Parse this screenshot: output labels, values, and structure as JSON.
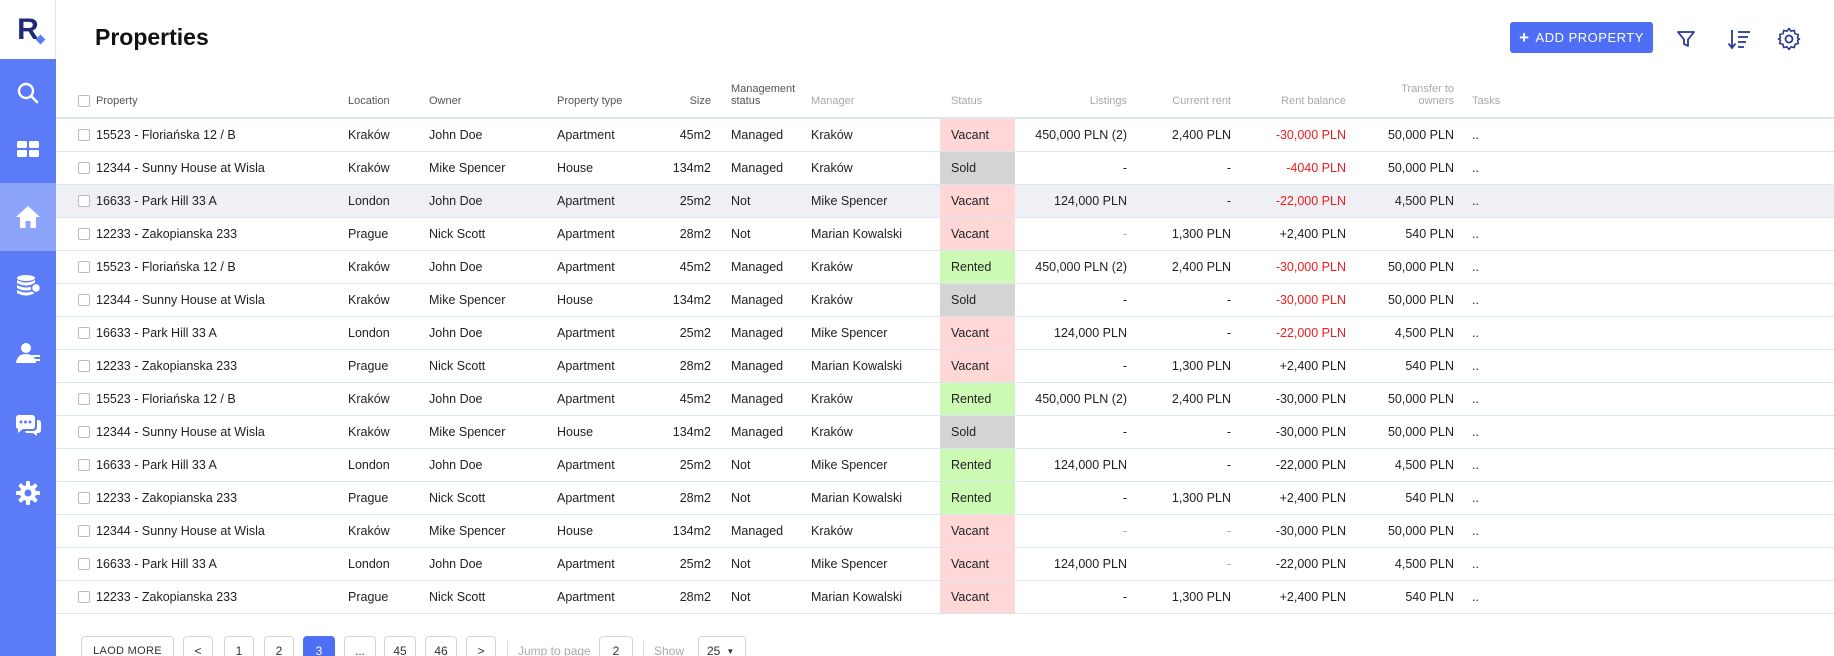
{
  "header": {
    "title": "Properties",
    "add_button": "ADD PROPERTY"
  },
  "icons": {
    "toolbar": [
      "filter-icon",
      "sort-icon",
      "settings-icon"
    ],
    "sidebar": [
      "search-icon",
      "dashboard-icon",
      "home-icon",
      "finance-icon",
      "users-icon",
      "chat-icon",
      "settings-icon"
    ]
  },
  "colors": {
    "accent": "#4d6ef5",
    "sidebar": "#5b7cf6",
    "sidebar_active": "#8da4fb",
    "negative": "#ee1c1c",
    "vacant_bg": "#ffd7d7",
    "rented_bg": "#ccfab4",
    "sold_bg": "#d4d4d4"
  },
  "table": {
    "columns": {
      "property": "Property",
      "location": "Location",
      "owner": "Owner",
      "type": "Property type",
      "size": "Size",
      "mgmt_1": "Management",
      "mgmt_2": "status",
      "manager": "Manager",
      "status": "Status",
      "listings": "Listings",
      "rent": "Current rent",
      "balance": "Rent balance",
      "transfer_1": "Transfer to",
      "transfer_2": "owners",
      "tasks": "Tasks"
    },
    "rows": [
      {
        "property": "15523 - Floriańska 12 / B",
        "location": "Kraków",
        "owner": "John Doe",
        "type": "Apartment",
        "size": "45m2",
        "mgmt": "Managed",
        "manager": "Kraków",
        "status": "Vacant",
        "listings": "450,000 PLN (2)",
        "rent": "2,400 PLN",
        "balance": "-30,000 PLN",
        "balance_negative": true,
        "transfer": "50,000 PLN",
        "tasks": "..",
        "highlight": false
      },
      {
        "property": "12344 - Sunny House at Wisla",
        "location": "Kraków",
        "owner": "Mike Spencer",
        "type": "House",
        "size": "134m2",
        "mgmt": "Managed",
        "manager": "Kraków",
        "status": "Sold",
        "listings": "-",
        "rent": "-",
        "balance": "-4040 PLN",
        "balance_negative": true,
        "transfer": "50,000 PLN",
        "tasks": "..",
        "highlight": false
      },
      {
        "property": "16633 - Park Hill 33 A",
        "location": "London",
        "owner": "John Doe",
        "type": "Apartment",
        "size": "25m2",
        "mgmt": "Not",
        "manager": "Mike Spencer",
        "status": "Vacant",
        "listings": "124,000 PLN",
        "rent": "-",
        "balance": "-22,000 PLN",
        "balance_negative": true,
        "transfer": "4,500 PLN",
        "tasks": "..",
        "highlight": true
      },
      {
        "property": "12233 - Zakopianska 233",
        "location": "Prague",
        "owner": "Nick Scott",
        "type": "Apartment",
        "size": "28m2",
        "mgmt": "Not",
        "manager": "Marian Kowalski",
        "status": "Vacant",
        "listings": "-",
        "listings_faint": true,
        "rent": "1,300 PLN",
        "balance": "+2,400 PLN",
        "balance_negative": false,
        "transfer": "540 PLN",
        "tasks": "..",
        "highlight": false
      },
      {
        "property": "15523 - Floriańska 12 / B",
        "location": "Kraków",
        "owner": "John Doe",
        "type": "Apartment",
        "size": "45m2",
        "mgmt": "Managed",
        "manager": "Kraków",
        "status": "Rented",
        "listings": "450,000 PLN (2)",
        "rent": "2,400 PLN",
        "balance": "-30,000 PLN",
        "balance_negative": true,
        "transfer": "50,000 PLN",
        "tasks": "..",
        "highlight": false
      },
      {
        "property": "12344 - Sunny House at Wisla",
        "location": "Kraków",
        "owner": "Mike Spencer",
        "type": "House",
        "size": "134m2",
        "mgmt": "Managed",
        "manager": "Kraków",
        "status": "Sold",
        "listings": "-",
        "rent": "-",
        "balance": "-30,000 PLN",
        "balance_negative": true,
        "transfer": "50,000 PLN",
        "tasks": "..",
        "highlight": false
      },
      {
        "property": "16633 - Park Hill 33 A",
        "location": "London",
        "owner": "John Doe",
        "type": "Apartment",
        "size": "25m2",
        "mgmt": "Managed",
        "manager": "Mike Spencer",
        "status": "Vacant",
        "listings": "124,000 PLN",
        "rent": "-",
        "balance": "-22,000 PLN",
        "balance_negative": true,
        "transfer": "4,500 PLN",
        "tasks": "..",
        "highlight": false
      },
      {
        "property": "12233 - Zakopianska 233",
        "location": "Prague",
        "owner": "Nick Scott",
        "type": "Apartment",
        "size": "28m2",
        "mgmt": "Managed",
        "manager": "Marian Kowalski",
        "status": "Vacant",
        "listings": "-",
        "rent": "1,300 PLN",
        "balance": "+2,400 PLN",
        "balance_negative": false,
        "transfer": "540 PLN",
        "tasks": "..",
        "highlight": false
      },
      {
        "property": "15523 - Floriańska 12 / B",
        "location": "Kraków",
        "owner": "John Doe",
        "type": "Apartment",
        "size": "45m2",
        "mgmt": "Managed",
        "manager": "Kraków",
        "status": "Rented",
        "listings": "450,000 PLN (2)",
        "rent": "2,400 PLN",
        "balance": "-30,000 PLN",
        "balance_negative": false,
        "transfer": "50,000 PLN",
        "tasks": "..",
        "highlight": false
      },
      {
        "property": "12344 - Sunny House at Wisla",
        "location": "Kraków",
        "owner": "Mike Spencer",
        "type": "House",
        "size": "134m2",
        "mgmt": "Managed",
        "manager": "Kraków",
        "status": "Sold",
        "listings": "-",
        "rent": "-",
        "balance": "-30,000 PLN",
        "balance_negative": false,
        "transfer": "50,000 PLN",
        "tasks": "..",
        "highlight": false
      },
      {
        "property": "16633 - Park Hill 33 A",
        "location": "London",
        "owner": "John Doe",
        "type": "Apartment",
        "size": "25m2",
        "mgmt": "Not",
        "manager": "Mike Spencer",
        "status": "Rented",
        "listings": "124,000 PLN",
        "rent": "-",
        "balance": "-22,000 PLN",
        "balance_negative": false,
        "transfer": "4,500 PLN",
        "tasks": "..",
        "highlight": false
      },
      {
        "property": "12233 - Zakopianska 233",
        "location": "Prague",
        "owner": "Nick Scott",
        "type": "Apartment",
        "size": "28m2",
        "mgmt": "Not",
        "manager": "Marian Kowalski",
        "status": "Rented",
        "listings": "-",
        "rent": "1,300 PLN",
        "balance": "+2,400 PLN",
        "balance_negative": false,
        "transfer": "540 PLN",
        "tasks": "..",
        "highlight": false
      },
      {
        "property": "12344 - Sunny House at Wisla",
        "location": "Kraków",
        "owner": "Mike Spencer",
        "type": "House",
        "size": "134m2",
        "mgmt": "Managed",
        "manager": "Kraków",
        "status": "Vacant",
        "listings": "-",
        "listings_faint": true,
        "rent": "-",
        "rent_faint": true,
        "balance": "-30,000 PLN",
        "balance_negative": false,
        "transfer": "50,000 PLN",
        "tasks": "..",
        "highlight": false
      },
      {
        "property": "16633 - Park Hill 33 A",
        "location": "London",
        "owner": "John Doe",
        "type": "Apartment",
        "size": "25m2",
        "mgmt": "Not",
        "manager": "Mike Spencer",
        "status": "Vacant",
        "listings": "124,000 PLN",
        "rent": "-",
        "rent_faint": true,
        "balance": "-22,000 PLN",
        "balance_negative": false,
        "transfer": "4,500 PLN",
        "tasks": "..",
        "highlight": false
      },
      {
        "property": "12233 - Zakopianska 233",
        "location": "Prague",
        "owner": "Nick Scott",
        "type": "Apartment",
        "size": "28m2",
        "mgmt": "Not",
        "manager": "Marian Kowalski",
        "status": "Vacant",
        "listings": "-",
        "rent": "1,300 PLN",
        "balance": "+2,400 PLN",
        "balance_negative": false,
        "transfer": "540 PLN",
        "tasks": "..",
        "highlight": false
      }
    ]
  },
  "pagination": {
    "load_more": "LAOD MORE",
    "prev": "<",
    "next": ">",
    "pages": [
      "1",
      "2",
      "3",
      "...",
      "45",
      "46"
    ],
    "current_page": "3",
    "jump_label": "Jump to page",
    "jump_value": "2",
    "show_label": "Show",
    "show_value": "25"
  }
}
